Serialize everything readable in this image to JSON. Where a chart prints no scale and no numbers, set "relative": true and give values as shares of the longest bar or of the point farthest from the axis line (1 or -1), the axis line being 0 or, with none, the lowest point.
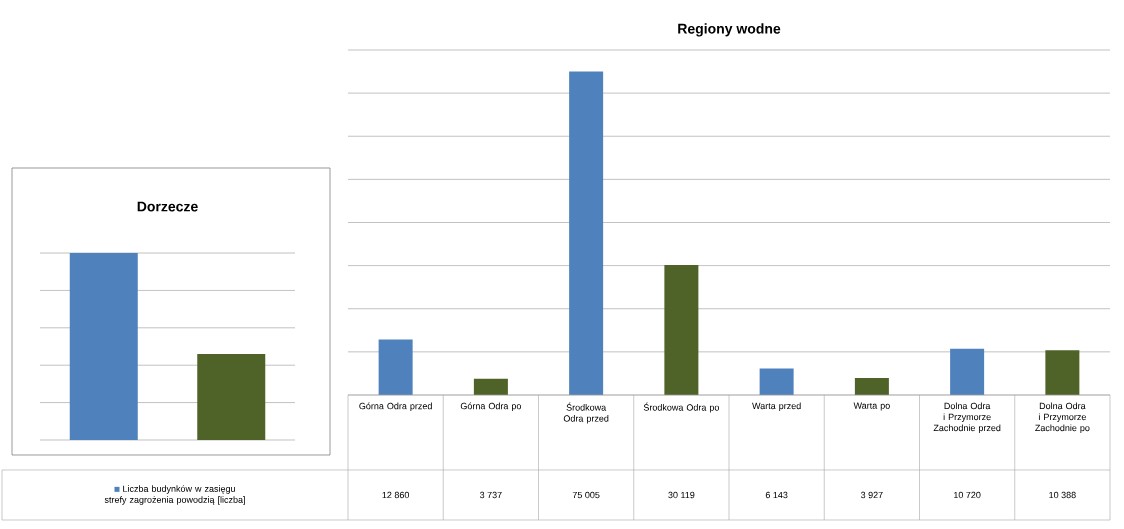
{
  "chart_data": [
    {
      "type": "bar",
      "title": "Dorzecze",
      "categories": [
        null,
        null
      ],
      "relative": true,
      "grid": "y",
      "tick_labels": false,
      "series": [
        {
          "colors": [
            "#4f81bd",
            "#4f6228"
          ],
          "values": [
            1,
            0.46
          ]
        }
      ]
    },
    {
      "type": "bar",
      "title": "Regiony wodne",
      "categories": [
        "Górna Odra przed",
        "Górna Odra po",
        "Środkowa Odra przed",
        "Środkowa Odra po",
        "Warta przed",
        "Warta po",
        "Dolna Odra i Przymorze Zachodnie przed",
        "Dolna Odra i Przymorze Zachodnie po"
      ],
      "ylim": [
        0,
        80000
      ],
      "yticks": [
        {
          "value": 0,
          "label": null
        },
        {
          "value": 10000,
          "label": null
        },
        {
          "value": 20000,
          "label": null
        },
        {
          "value": 30000,
          "label": null
        },
        {
          "value": 40000,
          "label": null
        },
        {
          "value": 50000,
          "label": null
        },
        {
          "value": 60000,
          "label": null
        },
        {
          "value": 70000,
          "label": null
        },
        {
          "value": 80000,
          "label": null
        }
      ],
      "grid": "y",
      "tick_labels": "x",
      "legend": "bottom left",
      "series": [
        {
          "name": "Liczba budynków w zasięgu strefy zagrożenia powodzią [liczba]",
          "color": "#4f81bd",
          "colors": [
            "#4f81bd",
            "#4f6228",
            "#4f81bd",
            "#4f6228",
            "#4f81bd",
            "#4f6228",
            "#4f81bd",
            "#4f6228"
          ],
          "values": [
            12860,
            3737,
            75005,
            30119,
            6143,
            3927,
            10720,
            10388
          ],
          "value_labels": [
            "12 860",
            "3 737",
            "75 005",
            "30 119",
            "6 143",
            "3 927",
            "10 720",
            "10 388"
          ]
        }
      ]
    }
  ]
}
